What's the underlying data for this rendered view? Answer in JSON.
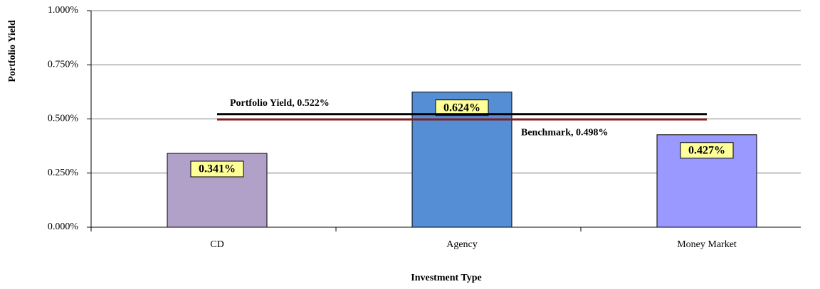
{
  "chart_data": {
    "type": "bar",
    "categories": [
      "CD",
      "Agency",
      "Money Market"
    ],
    "values": [
      0.341,
      0.624,
      0.427
    ],
    "value_labels": [
      "0.341%",
      "0.624%",
      "0.427%"
    ],
    "colors": [
      "#b1a0c7",
      "#558ed5",
      "#9999ff"
    ],
    "x_label": "Investment Type",
    "y_label": "Portfolio Yield",
    "ylim": [
      0,
      1
    ],
    "yticks": [
      {
        "value": 0,
        "label": "0.000%"
      },
      {
        "value": 0.25,
        "label": "0.250%"
      },
      {
        "value": 0.5,
        "label": "0.500%"
      },
      {
        "value": 0.75,
        "label": "0.750%"
      },
      {
        "value": 1,
        "label": "1.000%"
      }
    ],
    "grid": true,
    "reference_lines": [
      {
        "label": "Portfolio Yield, 0.522%",
        "value": 0.522,
        "color": "#000000"
      },
      {
        "label": "Benchmark, 0.498%",
        "value": 0.498,
        "color": "#7f1f1f"
      }
    ]
  }
}
